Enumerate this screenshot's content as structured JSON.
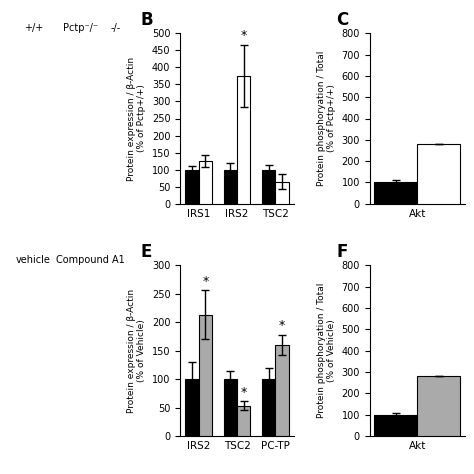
{
  "chart_data": [
    {
      "type": "bar",
      "title": "B",
      "categories": [
        "IRS1",
        "IRS2",
        "TSC2"
      ],
      "series": [
        {
          "color": "#000000",
          "values": [
            100,
            100,
            100
          ],
          "errors": [
            10,
            20,
            15
          ]
        },
        {
          "color": "#ffffff",
          "values": [
            125,
            375,
            65
          ],
          "errors": [
            18,
            90,
            22
          ]
        }
      ],
      "ylabel": "Protein expression / β-Actin\n(% of Pctp+/+)",
      "ylim": [
        0,
        500
      ],
      "yticks": [
        0,
        50,
        100,
        150,
        200,
        250,
        300,
        350,
        400,
        450,
        500
      ],
      "annotations": [
        {
          "text": "*",
          "category": "IRS2",
          "series": 1
        },
        {
          "text": "+/+"
        },
        {
          "text": "Pctp⁻/⁻"
        },
        {
          "text": "-/-"
        }
      ]
    },
    {
      "type": "bar",
      "title": "C",
      "categories": [
        "Akt"
      ],
      "series": [
        {
          "color": "#000000",
          "values": [
            100
          ],
          "errors": [
            12
          ]
        },
        {
          "color": "#ffffff",
          "values": [
            280
          ],
          "errors": [
            0
          ]
        }
      ],
      "ylabel": "Protein phosphoryation / Total\n(% of Pctp+/+)",
      "ylim": [
        0,
        800
      ],
      "yticks": [
        0,
        100,
        200,
        300,
        400,
        500,
        600,
        700,
        800
      ]
    },
    {
      "type": "bar",
      "title": "E",
      "categories": [
        "IRS2",
        "TSC2",
        "PC-TP"
      ],
      "series": [
        {
          "color": "#000000",
          "values": [
            100,
            100,
            100
          ],
          "errors": [
            30,
            15,
            20
          ]
        },
        {
          "color": "#aaaaaa",
          "values": [
            213,
            53,
            160
          ],
          "errors": [
            43,
            8,
            18
          ]
        }
      ],
      "ylabel": "Protein expression / β-Actin\n(% of Vehicle)",
      "ylim": [
        0,
        300
      ],
      "yticks": [
        0,
        50,
        100,
        150,
        200,
        250,
        300
      ],
      "annotations": [
        {
          "text": "*",
          "category": "IRS2",
          "series": 1
        },
        {
          "text": "*",
          "category": "TSC2",
          "series": 1
        },
        {
          "text": "*",
          "category": "PC-TP",
          "series": 1
        },
        {
          "text": "vehicle"
        },
        {
          "text": "Compound A1"
        }
      ]
    },
    {
      "type": "bar",
      "title": "F",
      "categories": [
        "Akt"
      ],
      "series": [
        {
          "color": "#000000",
          "values": [
            100
          ],
          "errors": [
            10
          ]
        },
        {
          "color": "#aaaaaa",
          "values": [
            280
          ],
          "errors": [
            0
          ]
        }
      ],
      "ylabel": "Protein phosphoryation / Total\n(% of Vehicle)",
      "ylim": [
        0,
        800
      ],
      "yticks": [
        0,
        100,
        200,
        300,
        400,
        500,
        600,
        700,
        800
      ]
    }
  ]
}
